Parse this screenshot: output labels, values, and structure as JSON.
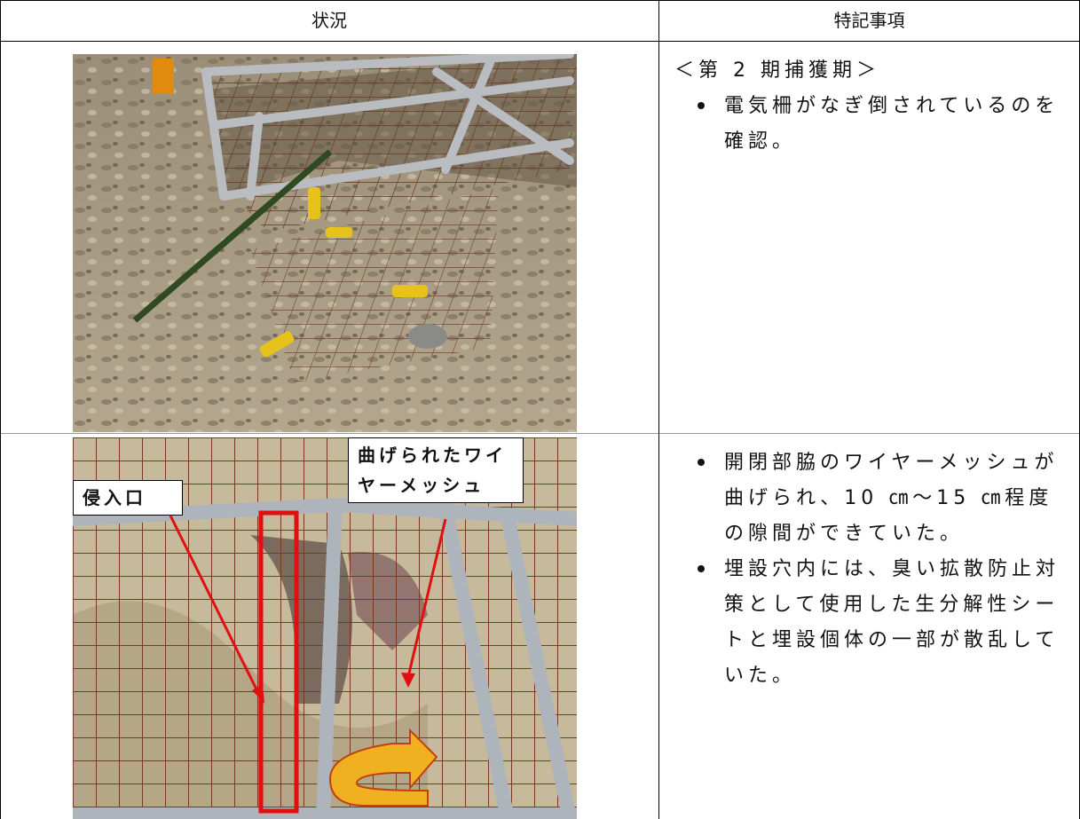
{
  "table": {
    "header": [
      "状況",
      "特記事項"
    ],
    "rows": [
      {
        "notes_heading": "＜第 2 期捕獲期＞",
        "notes": [
          "電気柵がなぎ倒されているのを確認。"
        ]
      },
      {
        "photo_labels": [
          "侵入口",
          "曲げられたワイヤーメッシュ"
        ],
        "notes": [
          "開閉部脇のワイヤーメッシュが曲げられ、10 ㎝～15 ㎝程度の隙間ができていた。",
          "埋設穴内には、臭い拡散防止対策として使用した生分解性シートと埋設個体の一部が散乱していた。"
        ]
      }
    ]
  }
}
